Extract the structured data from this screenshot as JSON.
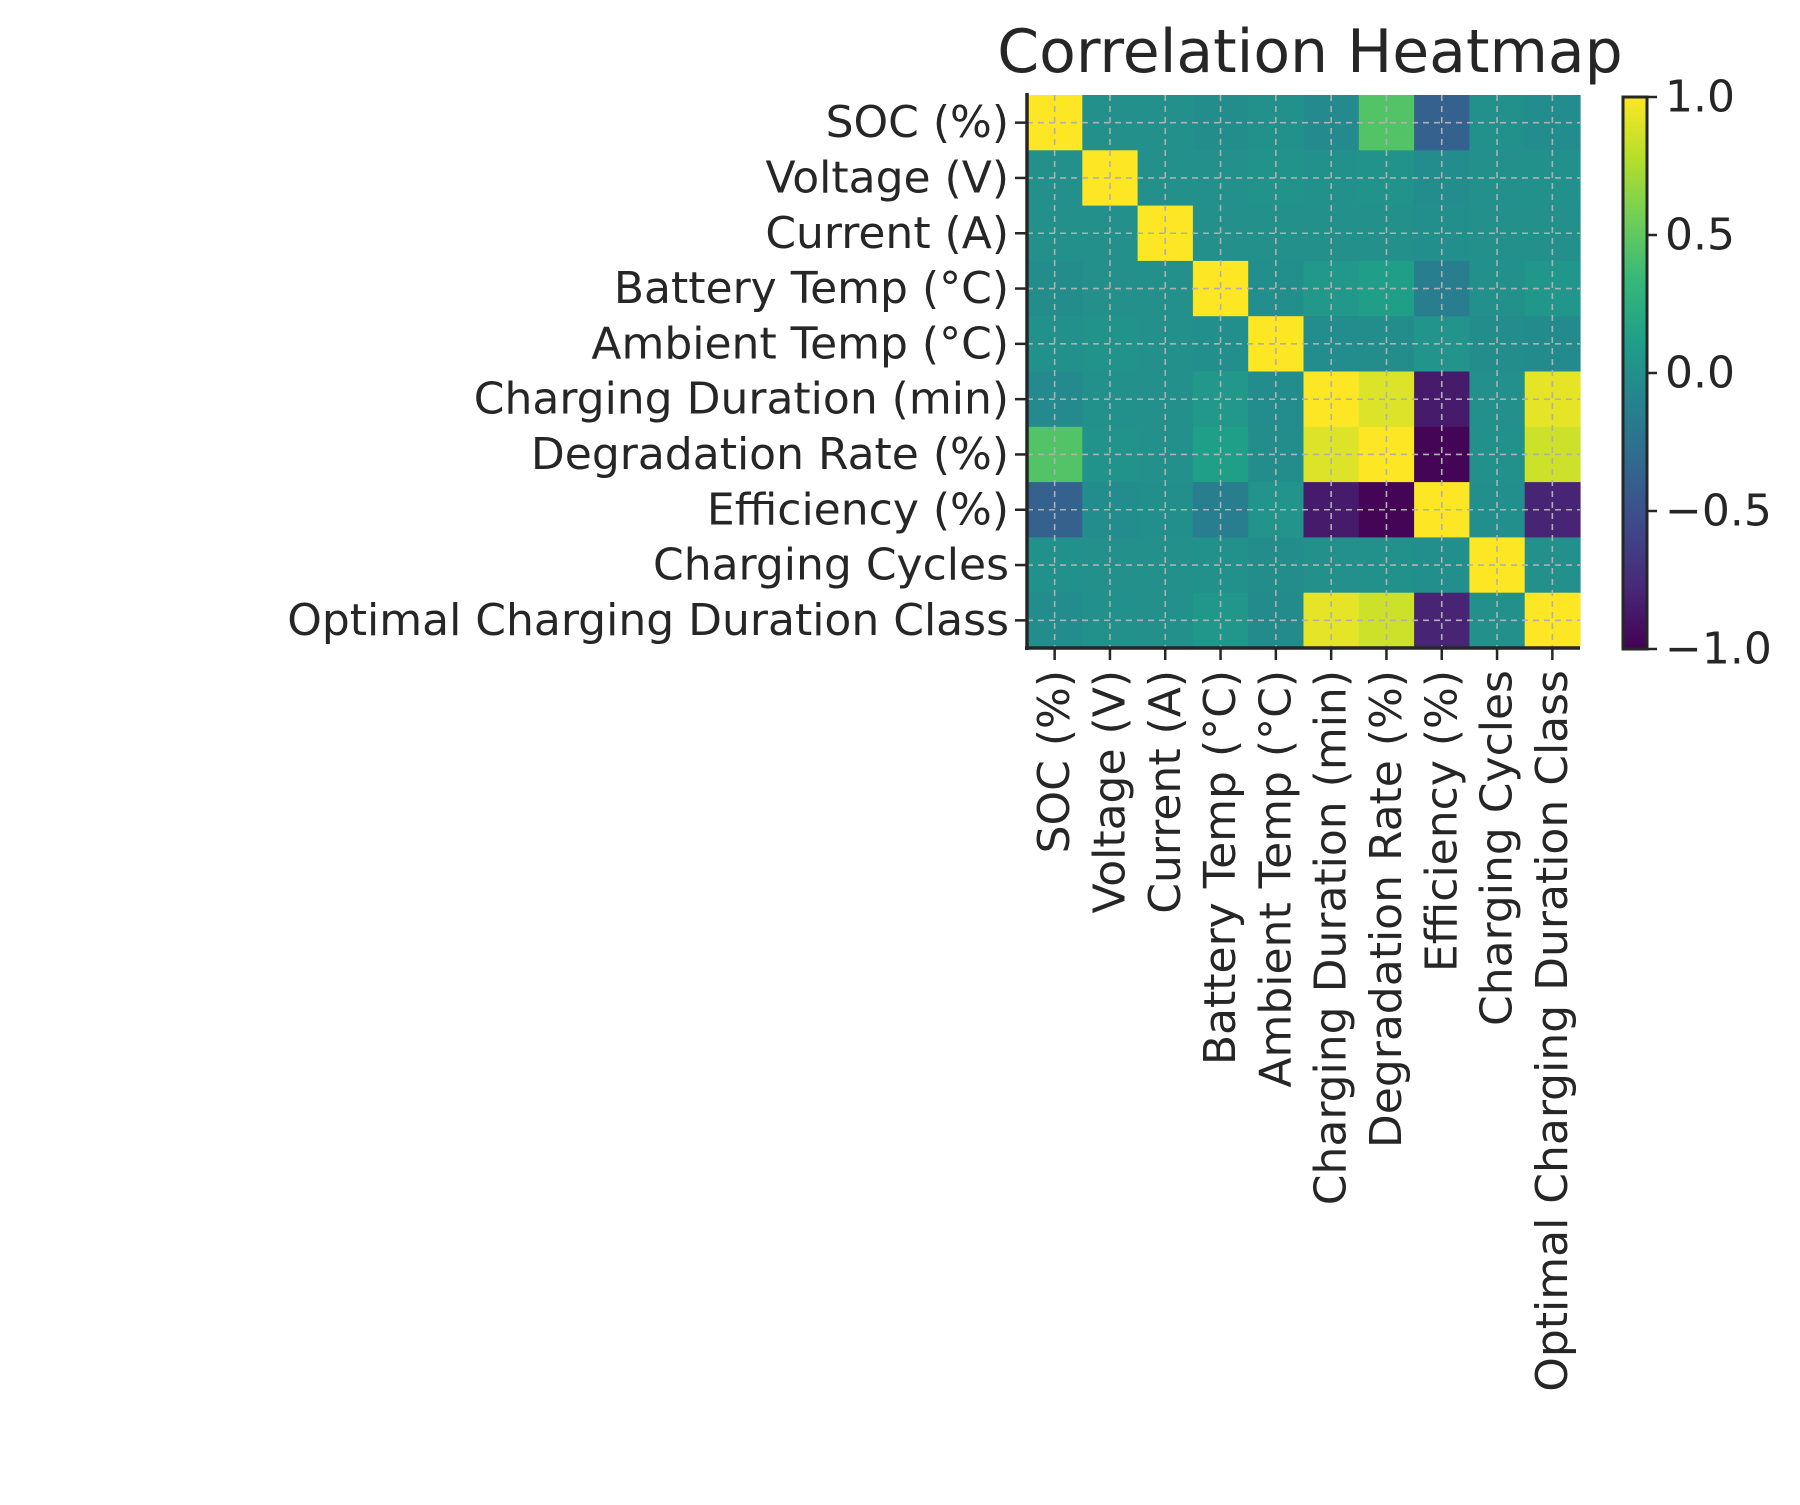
{
  "chart_data": {
    "type": "heatmap",
    "title": "Correlation Heatmap",
    "xlabel": "",
    "ylabel": "",
    "labels": [
      "SOC (%)",
      "Voltage (V)",
      "Current (A)",
      "Battery Temp (°C)",
      "Ambient Temp (°C)",
      "Charging Duration (min)",
      "Degradation Rate (%)",
      "Efficiency (%)",
      "Charging Cycles",
      "Optimal Charging Duration Class"
    ],
    "matrix": [
      [
        1.0,
        0.0,
        0.0,
        -0.02,
        0.01,
        -0.05,
        0.45,
        -0.38,
        0.01,
        -0.03
      ],
      [
        0.0,
        1.0,
        0.0,
        0.0,
        0.02,
        0.01,
        0.02,
        -0.03,
        0.0,
        0.01
      ],
      [
        0.0,
        0.0,
        1.0,
        0.0,
        0.0,
        0.0,
        0.0,
        -0.01,
        0.0,
        0.0
      ],
      [
        -0.02,
        0.0,
        0.0,
        1.0,
        -0.01,
        0.06,
        0.12,
        -0.15,
        0.01,
        0.05
      ],
      [
        0.01,
        0.02,
        0.0,
        -0.01,
        1.0,
        -0.03,
        -0.02,
        0.03,
        -0.02,
        -0.04
      ],
      [
        -0.05,
        0.01,
        0.0,
        0.06,
        -0.03,
        1.0,
        0.9,
        -0.85,
        0.0,
        0.93
      ],
      [
        0.45,
        0.02,
        0.0,
        0.12,
        -0.02,
        0.9,
        1.0,
        -0.98,
        0.01,
        0.85
      ],
      [
        -0.38,
        -0.03,
        -0.01,
        -0.15,
        0.03,
        -0.85,
        -0.98,
        1.0,
        -0.01,
        -0.8
      ],
      [
        0.01,
        0.0,
        0.0,
        0.01,
        -0.02,
        0.0,
        0.01,
        -0.01,
        1.0,
        0.0
      ],
      [
        -0.03,
        0.01,
        0.0,
        0.05,
        -0.04,
        0.93,
        0.85,
        -0.8,
        0.0,
        1.0
      ]
    ],
    "colormap": "viridis",
    "vmin": -1.0,
    "vmax": 1.0,
    "colorbar_ticks": [
      "1.0",
      "0.5",
      "0.0",
      "−0.5",
      "−1.0"
    ],
    "grid": true,
    "legend": "colorbar-right"
  }
}
